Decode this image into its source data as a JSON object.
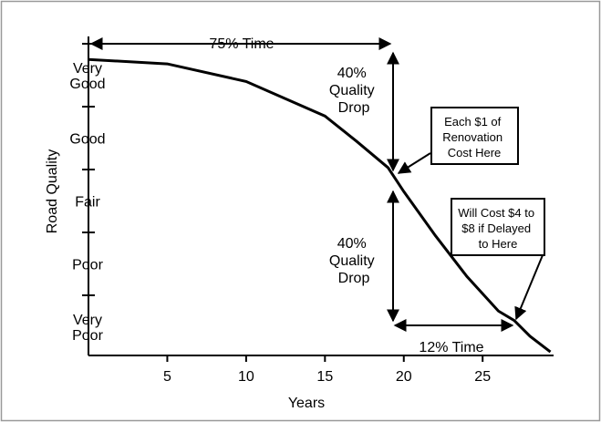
{
  "chart_data": {
    "type": "line",
    "x_label": "Years",
    "y_label": "Road Quality",
    "x": [
      0,
      5,
      10,
      15,
      17,
      19,
      20,
      22,
      24,
      26,
      27,
      28,
      29.3
    ],
    "series": [
      {
        "color": "#000000",
        "values": [
          95,
          93.6,
          88,
          77,
          69,
          60.6,
          53,
          39,
          26,
          15,
          12,
          7,
          2
        ]
      }
    ],
    "xlim": [
      0,
      29.5
    ],
    "xticks": [
      5,
      10,
      15,
      20,
      25
    ],
    "ylim": [
      0,
      100
    ],
    "yticks": [
      {
        "value": 90,
        "label": "Very Good"
      },
      {
        "value": 70,
        "label": "Good"
      },
      {
        "value": 50,
        "label": "Fair"
      },
      {
        "value": 30,
        "label": "Poor"
      },
      {
        "value": 10,
        "label": "Very Poor"
      }
    ],
    "minor_yticks": [
      20,
      40,
      60,
      80,
      100
    ],
    "annotations": {
      "top_time": [
        "75% Time"
      ],
      "drop_top": [
        "40%",
        "Quality",
        "Drop"
      ],
      "drop_bottom": [
        "40%",
        "Quality",
        "Drop"
      ],
      "bottom_time": [
        "12% Time"
      ],
      "box_early": [
        "Each $1 of",
        "Renovation",
        "Cost Here"
      ],
      "box_late": [
        "Will Cost $4 to",
        "$8 if Delayed",
        "to Here"
      ]
    }
  }
}
